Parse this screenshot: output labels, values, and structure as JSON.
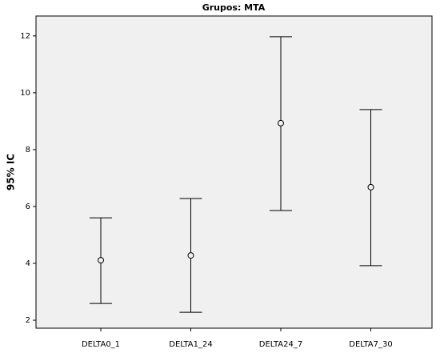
{
  "chart_data": {
    "type": "errorbar",
    "title": "Grupos: MTA",
    "y_label": "95% IC",
    "categories": [
      "DELTA0_1",
      "DELTA1_24",
      "DELTA24_7",
      "DELTA7_30"
    ],
    "values": [
      4.11,
      4.28,
      8.93,
      6.68
    ],
    "lower": [
      2.59,
      2.28,
      5.86,
      3.92
    ],
    "upper": [
      5.6,
      6.28,
      11.97,
      9.41
    ],
    "color": "#000000",
    "ylim": [
      1.72,
      12.7
    ],
    "yticks": [
      2,
      4,
      6,
      8,
      10,
      12
    ],
    "grid": false
  }
}
